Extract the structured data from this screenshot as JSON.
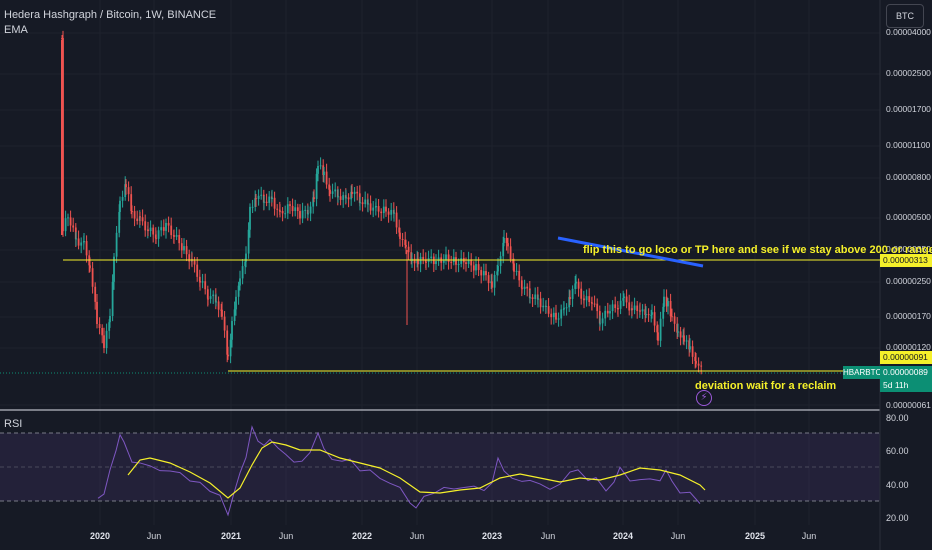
{
  "header": {
    "title": "Hedera Hashgraph / Bitcoin, 1W, BINANCE",
    "indicator": "EMA",
    "currency_button": "BTC"
  },
  "price_axis": {
    "labels": [
      "0.00004000",
      "0.00002500",
      "0.00001700",
      "0.00001100",
      "0.00000800",
      "0.00000500",
      "0.00000350",
      "0.00000250",
      "0.00000170",
      "0.00000120",
      "0.00000061"
    ]
  },
  "price_tags": {
    "upper_level": "0.00000313",
    "lower_level": "0.00000091",
    "current_price": "0.00000089",
    "countdown": "5d 11h",
    "symbol": "HBARBTC"
  },
  "rsi": {
    "label": "RSI",
    "axis_labels": [
      "80.00",
      "60.00",
      "40.00",
      "20.00"
    ]
  },
  "time_axis": {
    "labels": [
      {
        "text": "2020",
        "year": true
      },
      {
        "text": "Jun",
        "year": false
      },
      {
        "text": "2021",
        "year": true
      },
      {
        "text": "Jun",
        "year": false
      },
      {
        "text": "2022",
        "year": true
      },
      {
        "text": "Jun",
        "year": false
      },
      {
        "text": "2023",
        "year": true
      },
      {
        "text": "Jun",
        "year": false
      },
      {
        "text": "2024",
        "year": true
      },
      {
        "text": "Jun",
        "year": false
      },
      {
        "text": "2025",
        "year": true
      },
      {
        "text": "Jun",
        "year": false
      }
    ]
  },
  "annotations": {
    "upper_note": "flip this to go loco or TP here and see if we stay above 200 or range",
    "lower_note": "deviation wait for a reclaim",
    "bolt_icon": "lightning-icon"
  },
  "colors": {
    "up": "#26a69a",
    "down": "#ef5350",
    "level": "#f5f02a",
    "trend": "#2962ff",
    "rsi": "#7e57c2",
    "rsi_ma": "#f5f02a",
    "rsi_band": "#7e57c2"
  }
}
